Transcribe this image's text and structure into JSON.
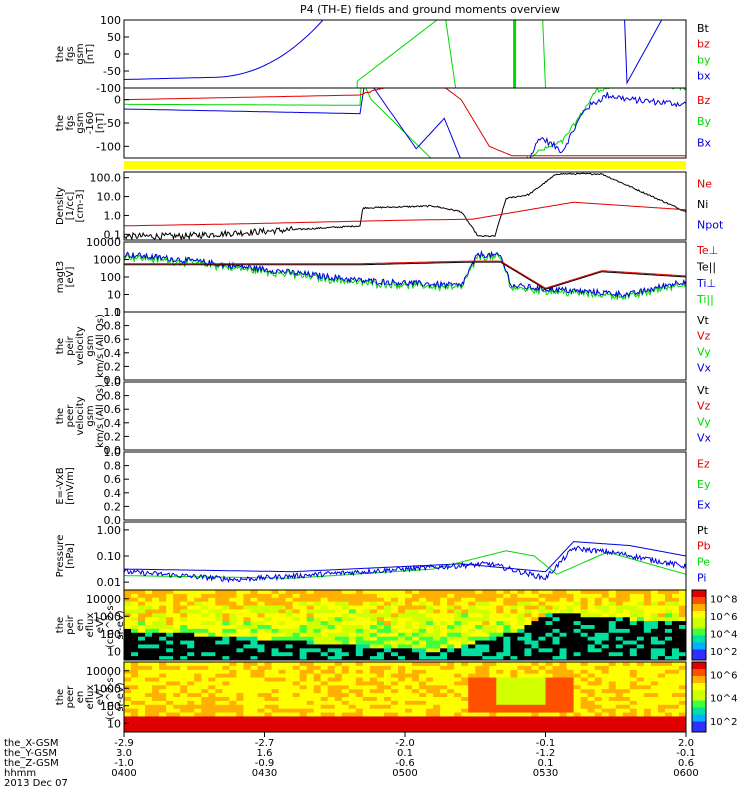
{
  "title": "P4 (TH-E) fields and ground moments overview",
  "colors": {
    "red": "#e00000",
    "green": "#00d800",
    "blue": "#0000e0",
    "black": "#000000",
    "yellow": "#ffff00"
  },
  "chart_data": [
    {
      "type": "line",
      "panel": "fgs",
      "ylabel": [
        "the",
        "fgs",
        "gsm",
        "[nT]"
      ],
      "ylim": [
        -100,
        100
      ],
      "yticks": [
        "100",
        "50",
        "0",
        "-50",
        "-100"
      ],
      "legend": [
        {
          "label": "Bt",
          "color": "#000000"
        },
        {
          "label": "bz",
          "color": "#e00000"
        },
        {
          "label": "by",
          "color": "#00d800"
        },
        {
          "label": "bx",
          "color": "#0000e0"
        }
      ]
    },
    {
      "type": "line",
      "panel": "fgs-sat",
      "ylabel": [
        "the",
        "fgs",
        "gsm",
        "-160",
        "[nT]"
      ],
      "ylim": [
        -125,
        25
      ],
      "yticks": [
        "0",
        "-50",
        "-100"
      ],
      "legend": [
        {
          "label": "Bz",
          "color": "#e00000"
        },
        {
          "label": "By",
          "color": "#00d800"
        },
        {
          "label": "Bx",
          "color": "#0000e0"
        }
      ]
    },
    {
      "type": "line",
      "panel": "density",
      "scale": "log",
      "ylabel": [
        "Density",
        "[1/cc]",
        "[cm-3]"
      ],
      "ylim": [
        0.05,
        200
      ],
      "yticks": [
        "100.0",
        "10.0",
        "1.0",
        "0.1"
      ],
      "legend": [
        {
          "label": "Ne",
          "color": "#e00000"
        },
        {
          "label": "Ni",
          "color": "#000000"
        },
        {
          "label": "Npot",
          "color": "#0000e0"
        }
      ]
    },
    {
      "type": "line",
      "panel": "temperature",
      "scale": "log",
      "ylabel": [
        "magt3",
        "[eV]"
      ],
      "ylim": [
        1,
        10000
      ],
      "yticks": [
        "10000",
        "1000",
        "100",
        "10",
        "1"
      ],
      "legend": [
        {
          "label": "Te⊥",
          "color": "#e00000"
        },
        {
          "label": "Te||",
          "color": "#000000"
        },
        {
          "label": "Ti⊥",
          "color": "#0000e0"
        },
        {
          "label": "Ti||",
          "color": "#00d800"
        }
      ]
    },
    {
      "type": "line",
      "panel": "peir-velocity",
      "ylabel": [
        "the",
        "peir",
        "velocity",
        "gsm",
        "km/s (All Qs)"
      ],
      "ylim": [
        0,
        1
      ],
      "yticks": [
        "1.0",
        "0.8",
        "0.6",
        "0.4",
        "0.2",
        "0.0"
      ],
      "legend": [
        {
          "label": "Vt",
          "color": "#000000"
        },
        {
          "label": "Vz",
          "color": "#e00000"
        },
        {
          "label": "Vy",
          "color": "#00d800"
        },
        {
          "label": "Vx",
          "color": "#0000e0"
        }
      ]
    },
    {
      "type": "line",
      "panel": "peer-velocity",
      "ylabel": [
        "the",
        "peer",
        "velocity",
        "gsm",
        "km/s (All Qs)"
      ],
      "ylim": [
        0,
        1
      ],
      "yticks": [
        "1.0",
        "0.8",
        "0.6",
        "0.4",
        "0.2",
        "0.0"
      ],
      "legend": [
        {
          "label": "Vt",
          "color": "#000000"
        },
        {
          "label": "Vz",
          "color": "#e00000"
        },
        {
          "label": "Vy",
          "color": "#00d800"
        },
        {
          "label": "Vx",
          "color": "#0000e0"
        }
      ]
    },
    {
      "type": "line",
      "panel": "efield",
      "ylabel": [
        "E=-VxB",
        "[mV/m]"
      ],
      "ylim": [
        0,
        1
      ],
      "yticks": [
        "1.0",
        "0.8",
        "0.6",
        "0.4",
        "0.2",
        "0.0"
      ],
      "legend": [
        {
          "label": "Ez",
          "color": "#e00000"
        },
        {
          "label": "Ey",
          "color": "#00d800"
        },
        {
          "label": "Ex",
          "color": "#0000e0"
        }
      ]
    },
    {
      "type": "line",
      "panel": "pressure",
      "scale": "log",
      "ylabel": [
        "Pressure",
        "[nPa]"
      ],
      "ylim": [
        0.005,
        2
      ],
      "yticks": [
        "1.00",
        "0.10",
        "0.01"
      ],
      "legend": [
        {
          "label": "Pt",
          "color": "#000000"
        },
        {
          "label": "Pb",
          "color": "#e00000"
        },
        {
          "label": "Pe",
          "color": "#00d800"
        },
        {
          "label": "Pi",
          "color": "#0000e0"
        }
      ]
    },
    {
      "type": "heatmap",
      "panel": "peir-spectrogram",
      "ylabel": [
        "the",
        "peir",
        "en",
        "eflux",
        "eV/",
        "(cm^2-s-",
        "sr-eV)"
      ],
      "yticks": [
        "10000",
        "1000",
        "100",
        "10"
      ],
      "colorbar": [
        "10^8",
        "10^6",
        "10^4",
        "10^2"
      ]
    },
    {
      "type": "heatmap",
      "panel": "peer-spectrogram",
      "ylabel": [
        "the",
        "peer",
        "en",
        "eflux",
        "eV/",
        "(cm^2-s-",
        "sr-eV)"
      ],
      "yticks": [
        "10000",
        "1000",
        "100",
        "10"
      ],
      "colorbar": [
        "10^6",
        "10^4",
        "10^2"
      ]
    }
  ],
  "xaxis": {
    "rows": [
      {
        "label": "the_X-GSM",
        "values": [
          "-2.9",
          "-2.7",
          "-2.0",
          "-0.1",
          "2.0"
        ]
      },
      {
        "label": "the_Y-GSM",
        "values": [
          "3.0",
          "1.6",
          "0.1",
          "-1.2",
          "-0.1"
        ]
      },
      {
        "label": "the_Z-GSM",
        "values": [
          "-1.0",
          "-0.9",
          "-0.6",
          "0.1",
          "0.6"
        ]
      },
      {
        "label": "hhmm",
        "values": [
          "0400",
          "0430",
          "0500",
          "0530",
          "0600"
        ]
      }
    ],
    "date": "2013 Dec 07"
  }
}
